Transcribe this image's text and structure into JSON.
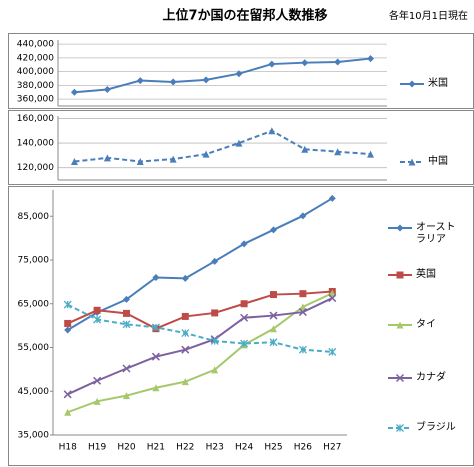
{
  "title": "上位7か国の在留邦人数推移",
  "note": "各年10月1日現在",
  "chart_data": [
    {
      "type": "line",
      "ylim": [
        350000,
        446000
      ],
      "yticks": [
        {
          "value": 360000,
          "label": "360,000"
        },
        {
          "value": 380000,
          "label": "380,000"
        },
        {
          "value": 400000,
          "label": "400,000"
        },
        {
          "value": 420000,
          "label": "420,000"
        },
        {
          "value": 440000,
          "label": "440,000"
        }
      ],
      "grid": true,
      "series": [
        {
          "name": "米国",
          "color": "#4a7ebb",
          "marker": "diamond",
          "dash": false,
          "values": [
            370000,
            374000,
            387000,
            385000,
            388000,
            397000,
            411000,
            413000,
            414000,
            419000
          ]
        }
      ]
    },
    {
      "type": "line",
      "ylim": [
        110000,
        162000
      ],
      "yticks": [
        {
          "value": 120000,
          "label": "120,000"
        },
        {
          "value": 140000,
          "label": "140,000"
        },
        {
          "value": 160000,
          "label": "160,000"
        }
      ],
      "grid": true,
      "series": [
        {
          "name": "中国",
          "color": "#4a7ebb",
          "marker": "triangle",
          "dash": true,
          "values": [
            125000,
            128000,
            125000,
            127000,
            131000,
            140000,
            150000,
            135000,
            133000,
            131000
          ]
        }
      ]
    },
    {
      "type": "line",
      "ylim": [
        35000,
        91000
      ],
      "categories": [
        "H18",
        "H19",
        "H20",
        "H21",
        "H22",
        "H23",
        "H24",
        "H25",
        "H26",
        "H27"
      ],
      "yticks": [
        {
          "value": 35000,
          "label": "35,000"
        },
        {
          "value": 45000,
          "label": "45,000"
        },
        {
          "value": 55000,
          "label": "55,000"
        },
        {
          "value": 65000,
          "label": "65,000"
        },
        {
          "value": 75000,
          "label": "75,000"
        },
        {
          "value": 85000,
          "label": "85,000"
        }
      ],
      "grid": false,
      "series": [
        {
          "name": "オーストラリア",
          "color": "#4a7ebb",
          "marker": "diamond",
          "dash": false,
          "values": [
            59000,
            63000,
            66000,
            71000,
            70800,
            74700,
            78700,
            81900,
            85100,
            89100
          ]
        },
        {
          "name": "英国",
          "color": "#be4b48",
          "marker": "square",
          "dash": false,
          "values": [
            60500,
            63500,
            62800,
            59300,
            62100,
            62900,
            65000,
            67100,
            67300,
            67800
          ]
        },
        {
          "name": "タイ",
          "color": "#a6c86a",
          "marker": "triangle",
          "dash": false,
          "values": [
            40200,
            42700,
            44000,
            45800,
            47200,
            49900,
            55600,
            59300,
            64300,
            67400
          ]
        },
        {
          "name": "カナダ",
          "color": "#7d60a0",
          "marker": "cross",
          "dash": false,
          "values": [
            44300,
            47400,
            50200,
            52900,
            54500,
            56900,
            61800,
            62300,
            63100,
            66300
          ]
        },
        {
          "name": "ブラジル",
          "color": "#4bacc6",
          "marker": "star",
          "dash": true,
          "values": [
            64800,
            61400,
            60300,
            59600,
            58300,
            56500,
            55900,
            56200,
            54500,
            54000
          ]
        }
      ]
    }
  ]
}
